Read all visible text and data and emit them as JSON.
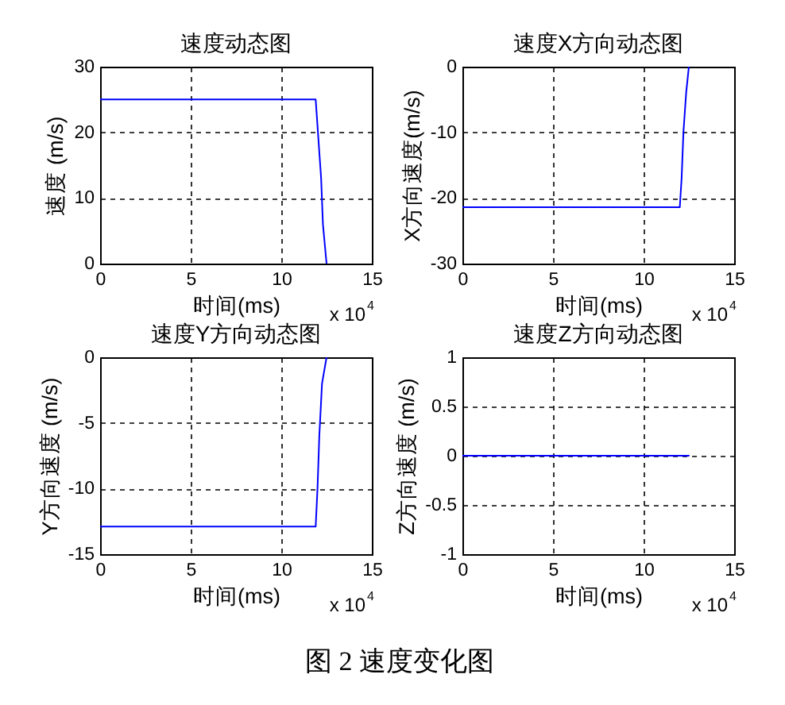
{
  "chart_data": [
    {
      "type": "line",
      "title": "速度动态图",
      "xlabel": "时间(ms)",
      "ylabel": "速度 (m/s)",
      "x": [
        0,
        11.9,
        12,
        12.1,
        12.2,
        12.3,
        12.5
      ],
      "values": [
        25,
        25,
        21,
        17,
        13,
        6,
        0
      ],
      "color": "#0000ff",
      "xlim": [
        0,
        15
      ],
      "xticks": [
        0,
        5,
        10,
        15
      ],
      "ylim": [
        0,
        30
      ],
      "yticks": [
        0,
        10,
        20,
        30
      ],
      "grid": true,
      "annotations": [
        "x 10$^{4}$"
      ]
    },
    {
      "type": "line",
      "title": "速度X方向动态图",
      "xlabel": "时间(ms)",
      "ylabel": "X方向速度(m/s)",
      "x": [
        0,
        12,
        12.1,
        12.2,
        12.35,
        12.5
      ],
      "values": [
        -21.4,
        -21.4,
        -17,
        -10,
        -4,
        0
      ],
      "color": "#0000ff",
      "xlim": [
        0,
        15
      ],
      "xticks": [
        0,
        5,
        10,
        15
      ],
      "ylim": [
        -30,
        0
      ],
      "yticks": [
        -30,
        -20,
        -10,
        0
      ],
      "grid": true,
      "annotations": [
        "x 10$^{4}$"
      ]
    },
    {
      "type": "line",
      "title": "速度Y方向动态图",
      "xlabel": "时间(ms)",
      "ylabel": "Y方向速度 (m/s)",
      "x": [
        0,
        11.9,
        12,
        12.1,
        12.25,
        12.5
      ],
      "values": [
        -12.9,
        -12.9,
        -10,
        -6,
        -2,
        0
      ],
      "color": "#0000ff",
      "xlim": [
        0,
        15
      ],
      "xticks": [
        0,
        5,
        10,
        15
      ],
      "ylim": [
        -15,
        0
      ],
      "yticks": [
        -15,
        -10,
        -5,
        0
      ],
      "grid": true,
      "annotations": [
        "x 10$^{4}$"
      ]
    },
    {
      "type": "line",
      "title": "速度Z方向动态图",
      "xlabel": "时间(ms)",
      "ylabel": "Z方向速度 (m/s)",
      "x": [
        0,
        12.5
      ],
      "values": [
        0,
        0
      ],
      "color": "#0000ff",
      "xlim": [
        0,
        15
      ],
      "xticks": [
        0,
        5,
        10,
        15
      ],
      "ylim": [
        -1,
        1
      ],
      "yticks": [
        -1,
        -0.5,
        0,
        0.5,
        1
      ],
      "grid": true,
      "annotations": [
        "x 10$^{4}$",
        "图 2 速度变化图"
      ]
    }
  ]
}
